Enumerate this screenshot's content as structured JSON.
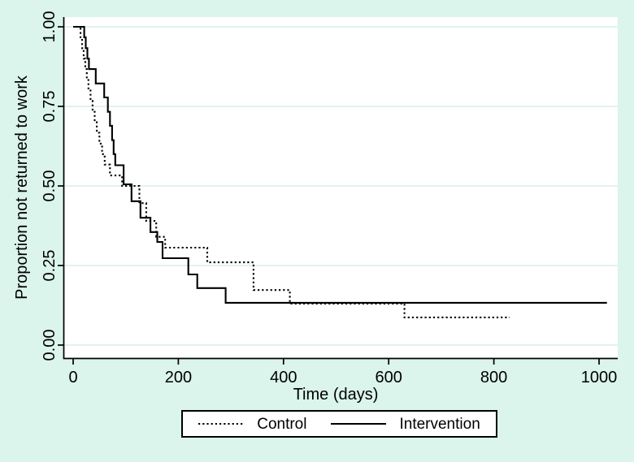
{
  "figure": {
    "background_color": "#dbf4ec",
    "plot_background_color": "#ffffff",
    "gridline_color": "#d7efe3",
    "axis_color": "#000000"
  },
  "chart_data": {
    "type": "line",
    "subtype": "kaplan-meier-step",
    "title": "",
    "xlabel": "Time (days)",
    "ylabel": "Proportion not returned to work",
    "xlim": [
      0,
      1035
    ],
    "ylim": [
      0,
      1
    ],
    "grid": "horizontal",
    "legend_position": "bottom-center",
    "x_ticks": [
      {
        "value": 0,
        "label": "0"
      },
      {
        "value": 200,
        "label": "200"
      },
      {
        "value": 400,
        "label": "400"
      },
      {
        "value": 600,
        "label": "600"
      },
      {
        "value": 800,
        "label": "800"
      },
      {
        "value": 1000,
        "label": "1000"
      }
    ],
    "y_ticks": [
      {
        "value": 0.0,
        "label": "0.00"
      },
      {
        "value": 0.25,
        "label": "0.25"
      },
      {
        "value": 0.5,
        "label": "0.50"
      },
      {
        "value": 0.75,
        "label": "0.75"
      },
      {
        "value": 1.0,
        "label": "1.00"
      }
    ],
    "series": [
      {
        "name": "Control",
        "line_style": "dotted",
        "color": "#000000",
        "points": [
          [
            0,
            1.0
          ],
          [
            14,
            0.967
          ],
          [
            17,
            0.933
          ],
          [
            20,
            0.9
          ],
          [
            23,
            0.867
          ],
          [
            26,
            0.833
          ],
          [
            29,
            0.8
          ],
          [
            33,
            0.767
          ],
          [
            37,
            0.733
          ],
          [
            41,
            0.7
          ],
          [
            45,
            0.667
          ],
          [
            50,
            0.633
          ],
          [
            55,
            0.6
          ],
          [
            60,
            0.567
          ],
          [
            70,
            0.533
          ],
          [
            93,
            0.5
          ],
          [
            126,
            0.446
          ],
          [
            139,
            0.39
          ],
          [
            158,
            0.34
          ],
          [
            175,
            0.306
          ],
          [
            255,
            0.26
          ],
          [
            343,
            0.173
          ],
          [
            412,
            0.13
          ],
          [
            630,
            0.087
          ],
          [
            830,
            0.087
          ]
        ]
      },
      {
        "name": "Intervention",
        "line_style": "solid",
        "color": "#000000",
        "points": [
          [
            0,
            1.0
          ],
          [
            21,
            0.967
          ],
          [
            24,
            0.933
          ],
          [
            27,
            0.9
          ],
          [
            30,
            0.867
          ],
          [
            43,
            0.822
          ],
          [
            59,
            0.778
          ],
          [
            66,
            0.733
          ],
          [
            70,
            0.689
          ],
          [
            74,
            0.644
          ],
          [
            77,
            0.6
          ],
          [
            80,
            0.565
          ],
          [
            96,
            0.505
          ],
          [
            111,
            0.452
          ],
          [
            128,
            0.4
          ],
          [
            147,
            0.355
          ],
          [
            160,
            0.324
          ],
          [
            170,
            0.273
          ],
          [
            219,
            0.222
          ],
          [
            236,
            0.179
          ],
          [
            290,
            0.133
          ],
          [
            1015,
            0.133
          ]
        ]
      }
    ]
  }
}
